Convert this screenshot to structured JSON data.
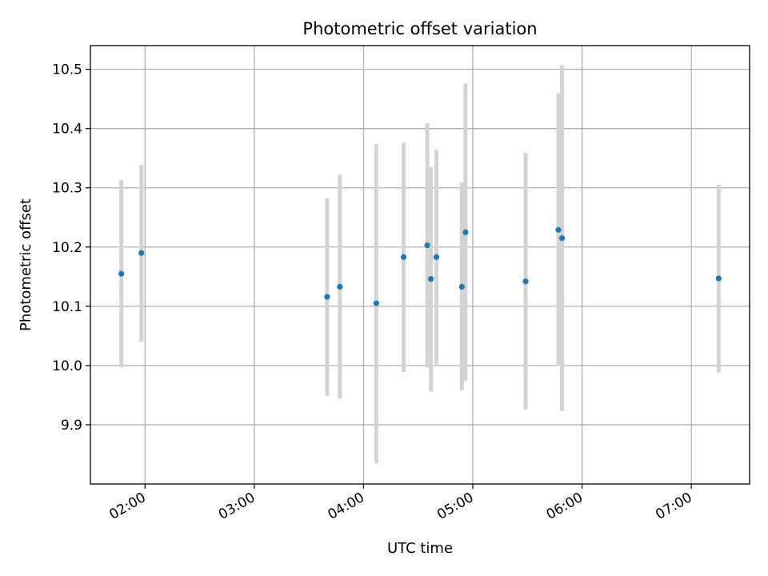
{
  "chart_data": {
    "type": "scatter",
    "title": "Photometric offset variation",
    "xlabel": "UTC time",
    "ylabel": "Photometric offset",
    "x_unit": "time_of_day",
    "xlim": [
      "01:30",
      "07:32"
    ],
    "ylim": [
      9.8,
      10.54
    ],
    "x_ticks": [
      "02:00",
      "03:00",
      "04:00",
      "05:00",
      "06:00",
      "07:00"
    ],
    "y_ticks": [
      9.9,
      10.0,
      10.1,
      10.2,
      10.3,
      10.4,
      10.5
    ],
    "grid": true,
    "point_color": "#1f77b4",
    "errorbar_color": "#d3d3d3",
    "points": [
      {
        "x": "01:47",
        "y": 10.155,
        "ylow": 9.997,
        "yhigh": 10.313
      },
      {
        "x": "01:58",
        "y": 10.19,
        "ylow": 10.04,
        "yhigh": 10.339
      },
      {
        "x": "03:40",
        "y": 10.116,
        "ylow": 9.949,
        "yhigh": 10.282
      },
      {
        "x": "03:47",
        "y": 10.133,
        "ylow": 9.944,
        "yhigh": 10.322
      },
      {
        "x": "04:07",
        "y": 10.105,
        "ylow": 9.835,
        "yhigh": 10.374
      },
      {
        "x": "04:22",
        "y": 10.183,
        "ylow": 9.989,
        "yhigh": 10.376
      },
      {
        "x": "04:35",
        "y": 10.203,
        "ylow": 9.997,
        "yhigh": 10.409
      },
      {
        "x": "04:37",
        "y": 10.146,
        "ylow": 9.956,
        "yhigh": 10.335
      },
      {
        "x": "04:40",
        "y": 10.183,
        "ylow": 10.002,
        "yhigh": 10.364
      },
      {
        "x": "04:54",
        "y": 10.133,
        "ylow": 9.958,
        "yhigh": 10.309
      },
      {
        "x": "04:56",
        "y": 10.225,
        "ylow": 9.974,
        "yhigh": 10.476
      },
      {
        "x": "05:29",
        "y": 10.142,
        "ylow": 9.926,
        "yhigh": 10.359
      },
      {
        "x": "05:47",
        "y": 10.229,
        "ylow": 9.999,
        "yhigh": 10.459
      },
      {
        "x": "05:49",
        "y": 10.215,
        "ylow": 9.923,
        "yhigh": 10.507
      },
      {
        "x": "07:15",
        "y": 10.147,
        "ylow": 9.988,
        "yhigh": 10.305
      }
    ]
  }
}
